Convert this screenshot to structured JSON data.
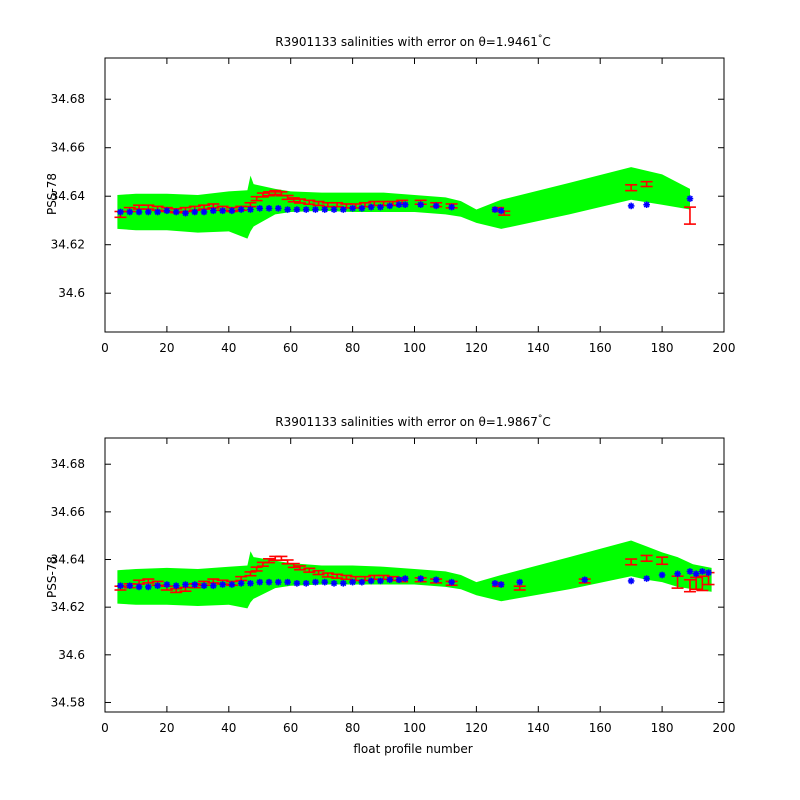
{
  "colors": {
    "envelope": "#00ff00",
    "calibrated": "#ff0000",
    "uncalibrated": "#0000ff",
    "axis": "#000000",
    "background": "#ffffff"
  },
  "chart_data": [
    {
      "type": "scatter",
      "title": "R3901133 salinities with error on θ=1.9461°C",
      "title_main": "R3901133 salinities with error on θ=1.9461",
      "title_sup": "°",
      "title_tail": "C",
      "xlabel": "",
      "ylabel": "PSS-78",
      "xlim": [
        0,
        200
      ],
      "ylim": [
        34.584,
        34.697
      ],
      "xticks": [
        0,
        20,
        40,
        60,
        80,
        100,
        120,
        140,
        160,
        180,
        200
      ],
      "yticks": [
        34.6,
        34.62,
        34.64,
        34.66,
        34.68
      ],
      "ytick_labels": [
        "34.6",
        "34.62",
        "34.64",
        "34.66",
        "34.68"
      ],
      "grid": false,
      "envelope": {
        "x": [
          4,
          10,
          20,
          30,
          40,
          46,
          47,
          48,
          55,
          60,
          70,
          80,
          90,
          100,
          110,
          115,
          120,
          128,
          150,
          170,
          175,
          180,
          189,
          189,
          180,
          175,
          170,
          150,
          128,
          120,
          115,
          110,
          100,
          90,
          80,
          70,
          60,
          55,
          48,
          47,
          46,
          40,
          30,
          20,
          10,
          4
        ],
        "y": [
          34.6405,
          34.641,
          34.641,
          34.6405,
          34.642,
          34.6425,
          34.6485,
          34.645,
          34.643,
          34.642,
          34.6415,
          34.6415,
          34.6415,
          34.6405,
          34.6395,
          34.638,
          34.6345,
          34.6385,
          34.6455,
          34.652,
          34.6505,
          34.649,
          34.643,
          34.6345,
          34.6365,
          34.6375,
          34.6385,
          34.6325,
          34.6265,
          34.629,
          34.6315,
          34.6325,
          34.6335,
          34.6335,
          34.6335,
          34.634,
          34.6335,
          34.6325,
          34.6275,
          34.6255,
          34.6225,
          34.6255,
          34.625,
          34.626,
          34.626,
          34.6265
        ]
      },
      "series": [
        {
          "type": "errorbar",
          "x": [
            5,
            8,
            11,
            14,
            17,
            20,
            23,
            26,
            29,
            32,
            35,
            38,
            41,
            44,
            47,
            49,
            51,
            53,
            55,
            57,
            59,
            61,
            63,
            66,
            69,
            72,
            75,
            78,
            81,
            84,
            87,
            90,
            93,
            96,
            102,
            107,
            112,
            127,
            129,
            170,
            175,
            189
          ],
          "y": [
            34.6325,
            34.6345,
            34.6355,
            34.6355,
            34.635,
            34.6345,
            34.634,
            34.6345,
            34.635,
            34.6355,
            34.636,
            34.635,
            34.6345,
            34.635,
            34.6365,
            34.639,
            34.6405,
            34.641,
            34.6415,
            34.641,
            34.6395,
            34.6385,
            34.638,
            34.6375,
            34.637,
            34.6365,
            34.6365,
            34.636,
            34.636,
            34.6365,
            34.637,
            34.637,
            34.637,
            34.6375,
            34.6375,
            34.6365,
            34.636,
            34.6345,
            34.633,
            34.6435,
            34.645,
            34.632
          ],
          "err": [
            0.0012,
            0.0008,
            0.0008,
            0.0008,
            0.0008,
            0.0008,
            0.0008,
            0.0008,
            0.0008,
            0.0008,
            0.0008,
            0.0008,
            0.0008,
            0.0008,
            0.0008,
            0.0008,
            0.0008,
            0.0008,
            0.0008,
            0.0008,
            0.0008,
            0.0008,
            0.0008,
            0.0008,
            0.0008,
            0.0008,
            0.0008,
            0.0008,
            0.0008,
            0.0008,
            0.0008,
            0.0008,
            0.0008,
            0.0008,
            0.0008,
            0.0008,
            0.0008,
            0.0008,
            0.0008,
            0.0012,
            0.001,
            0.0035
          ]
        },
        {
          "type": "markers",
          "x": [
            5,
            8,
            11,
            14,
            17,
            20,
            23,
            26,
            29,
            32,
            35,
            38,
            41,
            44,
            47,
            50,
            53,
            56,
            59,
            62,
            65,
            68,
            71,
            74,
            77,
            80,
            83,
            86,
            89,
            92,
            95,
            97,
            102,
            107,
            112,
            126,
            128,
            170,
            175,
            189
          ],
          "y": [
            34.6335,
            34.6335,
            34.6335,
            34.6335,
            34.6335,
            34.634,
            34.6335,
            34.633,
            34.6335,
            34.6335,
            34.634,
            34.634,
            34.634,
            34.6345,
            34.6345,
            34.635,
            34.635,
            34.635,
            34.6345,
            34.6345,
            34.6345,
            34.6345,
            34.6345,
            34.6345,
            34.6345,
            34.635,
            34.635,
            34.6355,
            34.6355,
            34.636,
            34.6365,
            34.6365,
            34.6365,
            34.636,
            34.6355,
            34.6345,
            34.634,
            34.636,
            34.6365,
            34.639
          ]
        }
      ]
    },
    {
      "type": "scatter",
      "title": "R3901133 salinities with error on θ=1.9867°C",
      "title_main": "R3901133 salinities with error on θ=1.9867",
      "title_sup": "°",
      "title_tail": "C",
      "xlabel": "float profile number",
      "ylabel": "PSS-78",
      "xlim": [
        0,
        200
      ],
      "ylim": [
        34.576,
        34.691
      ],
      "xticks": [
        0,
        20,
        40,
        60,
        80,
        100,
        120,
        140,
        160,
        180,
        200
      ],
      "yticks": [
        34.58,
        34.6,
        34.62,
        34.64,
        34.66,
        34.68
      ],
      "ytick_labels": [
        "34.58",
        "34.6",
        "34.62",
        "34.64",
        "34.66",
        "34.68"
      ],
      "grid": false,
      "envelope": {
        "x": [
          4,
          10,
          20,
          30,
          40,
          46,
          47,
          48,
          55,
          60,
          70,
          80,
          90,
          100,
          110,
          115,
          120,
          128,
          150,
          170,
          175,
          180,
          185,
          190,
          196,
          196,
          190,
          185,
          180,
          175,
          170,
          150,
          128,
          120,
          115,
          110,
          100,
          90,
          80,
          70,
          60,
          55,
          48,
          47,
          46,
          40,
          30,
          20,
          10,
          4
        ],
        "y": [
          34.6355,
          34.636,
          34.6365,
          34.636,
          34.637,
          34.6375,
          34.6435,
          34.641,
          34.6395,
          34.6385,
          34.6375,
          34.6375,
          34.637,
          34.636,
          34.635,
          34.6335,
          34.6305,
          34.6335,
          34.641,
          34.648,
          34.6455,
          34.643,
          34.641,
          34.638,
          34.6365,
          34.6265,
          34.6275,
          34.6285,
          34.6305,
          34.6315,
          34.633,
          34.6275,
          34.6225,
          34.625,
          34.6275,
          34.6285,
          34.6295,
          34.6295,
          34.6295,
          34.6295,
          34.629,
          34.628,
          34.6235,
          34.622,
          34.6195,
          34.621,
          34.6205,
          34.621,
          34.621,
          34.6215
        ]
      },
      "series": [
        {
          "type": "errorbar",
          "x": [
            5,
            8,
            11,
            14,
            17,
            20,
            23,
            26,
            29,
            32,
            35,
            38,
            41,
            44,
            47,
            49,
            51,
            53,
            55,
            57,
            59,
            61,
            63,
            66,
            69,
            72,
            75,
            78,
            81,
            84,
            87,
            90,
            93,
            96,
            102,
            107,
            112,
            127,
            134,
            155,
            170,
            175,
            180,
            185,
            189,
            191,
            193,
            195
          ],
          "y": [
            34.628,
            34.629,
            34.6305,
            34.631,
            34.63,
            34.628,
            34.627,
            34.6275,
            34.629,
            34.63,
            34.631,
            34.6305,
            34.63,
            34.632,
            34.634,
            34.636,
            34.638,
            34.6395,
            34.6405,
            34.6405,
            34.639,
            34.6375,
            34.6365,
            34.6355,
            34.6345,
            34.6335,
            34.633,
            34.6325,
            34.632,
            34.632,
            34.6325,
            34.6325,
            34.632,
            34.6315,
            34.6315,
            34.631,
            34.63,
            34.6295,
            34.628,
            34.631,
            34.639,
            34.6405,
            34.6395,
            34.6305,
            34.629,
            34.63,
            34.63,
            34.632
          ],
          "err": [
            0.0008,
            0.0008,
            0.0008,
            0.0008,
            0.0008,
            0.0008,
            0.0008,
            0.0008,
            0.0008,
            0.0008,
            0.0008,
            0.0008,
            0.0008,
            0.0008,
            0.0008,
            0.0008,
            0.0008,
            0.0008,
            0.0008,
            0.0008,
            0.0008,
            0.0008,
            0.0008,
            0.0008,
            0.0008,
            0.0008,
            0.0008,
            0.0008,
            0.0008,
            0.0008,
            0.0008,
            0.0008,
            0.0008,
            0.0008,
            0.0008,
            0.0008,
            0.0008,
            0.0008,
            0.0008,
            0.0008,
            0.0012,
            0.0012,
            0.0015,
            0.0025,
            0.0025,
            0.0025,
            0.003,
            0.0025
          ]
        },
        {
          "type": "markers",
          "x": [
            5,
            8,
            11,
            14,
            17,
            20,
            23,
            26,
            29,
            32,
            35,
            38,
            41,
            44,
            47,
            50,
            53,
            56,
            59,
            62,
            65,
            68,
            71,
            74,
            77,
            80,
            83,
            86,
            89,
            92,
            95,
            97,
            102,
            107,
            112,
            126,
            128,
            134,
            155,
            170,
            175,
            180,
            185,
            189,
            191,
            193,
            195
          ],
          "y": [
            34.629,
            34.629,
            34.6285,
            34.6285,
            34.629,
            34.6295,
            34.629,
            34.6295,
            34.6295,
            34.629,
            34.629,
            34.6295,
            34.6295,
            34.63,
            34.63,
            34.6305,
            34.6305,
            34.6305,
            34.6305,
            34.63,
            34.63,
            34.6305,
            34.6305,
            34.63,
            34.63,
            34.6305,
            34.6305,
            34.631,
            34.631,
            34.6315,
            34.6315,
            34.632,
            34.632,
            34.6315,
            34.6305,
            34.63,
            34.6295,
            34.6305,
            34.6315,
            34.631,
            34.632,
            34.6335,
            34.634,
            34.635,
            34.634,
            34.635,
            34.6345
          ]
        }
      ]
    }
  ]
}
